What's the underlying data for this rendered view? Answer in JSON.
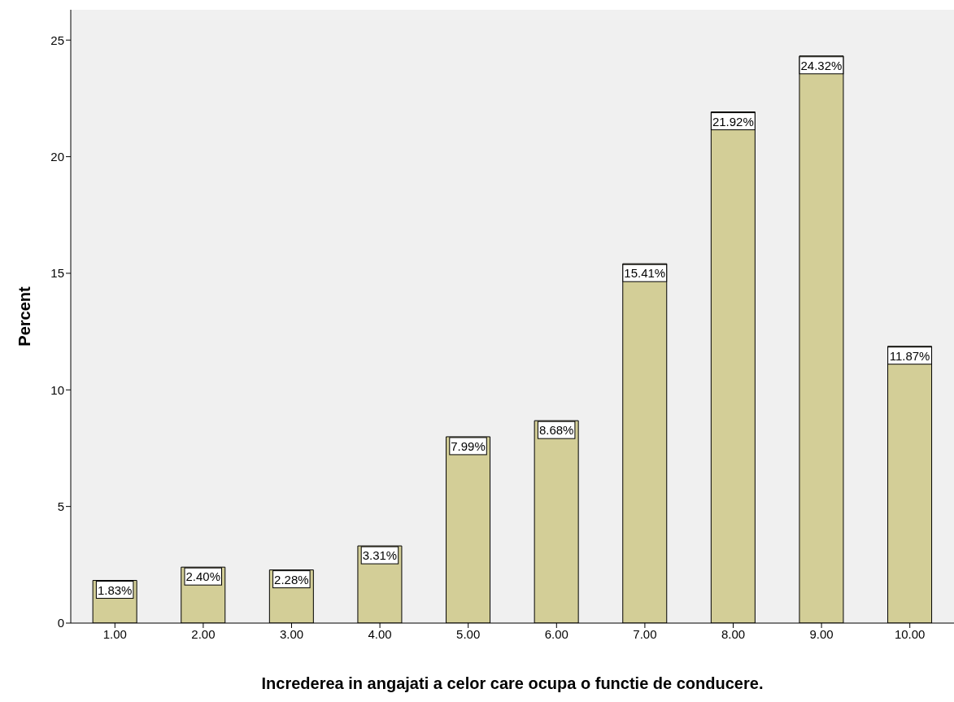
{
  "chart_data": {
    "type": "bar",
    "xlabel": "Increderea in angajati a celor care ocupa o functie de conducere.",
    "ylabel": "Percent",
    "categories": [
      "1.00",
      "2.00",
      "3.00",
      "4.00",
      "5.00",
      "6.00",
      "7.00",
      "8.00",
      "9.00",
      "10.00"
    ],
    "values": [
      1.83,
      2.4,
      2.28,
      3.31,
      7.99,
      8.68,
      15.41,
      21.92,
      24.32,
      11.87
    ],
    "value_labels": [
      "1.83%",
      "2.40%",
      "2.28%",
      "3.31%",
      "7.99%",
      "8.68%",
      "15.41%",
      "21.92%",
      "24.32%",
      "11.87%"
    ],
    "color": "#d3ce97",
    "ylim": [
      0,
      26.3
    ],
    "yticks": [
      0,
      5,
      10,
      15,
      20,
      25
    ],
    "grid": false,
    "legend": false
  }
}
